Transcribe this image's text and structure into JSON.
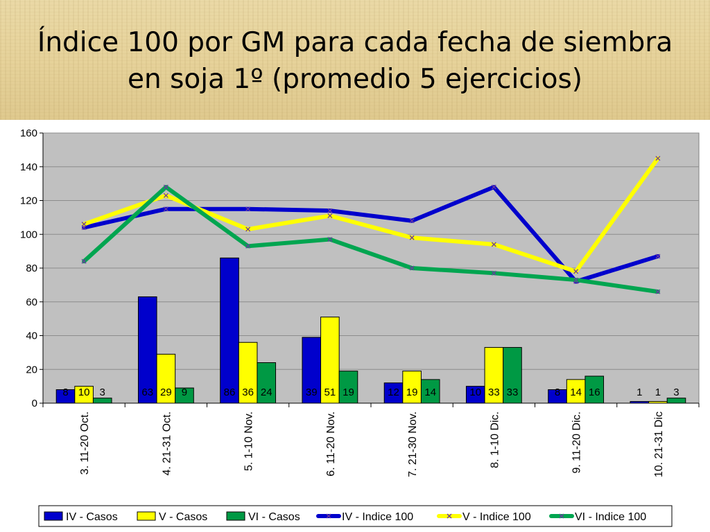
{
  "slide": {
    "title": "Índice 100 por GM para cada fecha de siembra  en soja 1º (promedio 5 ejercicios)"
  },
  "chart_data": {
    "type": "bar",
    "title": "Índice 100 por GM para cada fecha de siembra  en soja 1º (promedio 5 ejercicios)",
    "xlabel": "",
    "ylabel": "",
    "ylim": [
      0,
      160
    ],
    "yticks": [
      0,
      20,
      40,
      60,
      80,
      100,
      120,
      140,
      160
    ],
    "grid": true,
    "legend_position": "bottom",
    "categories": [
      "3. 11-20 Oct.",
      "4. 21-31 Oct.",
      "5. 1-10 Nov.",
      "6. 11-20 Nov.",
      "7. 21-30 Nov.",
      "8. 1-10 Dic.",
      "9. 11-20 Dic.",
      "10. 21-31 Dic"
    ],
    "series": [
      {
        "name": "IV - Casos",
        "type": "bar",
        "color": "#0000cc",
        "values": [
          8,
          63,
          86,
          39,
          12,
          10,
          8,
          1
        ]
      },
      {
        "name": "V - Casos",
        "type": "bar",
        "color": "#ffff00",
        "values": [
          10,
          29,
          36,
          51,
          19,
          33,
          14,
          1
        ]
      },
      {
        "name": "VI - Casos",
        "type": "bar",
        "color": "#009944",
        "values": [
          3,
          9,
          24,
          19,
          14,
          33,
          16,
          3
        ]
      },
      {
        "name": "IV -  Indice 100",
        "type": "line",
        "color": "#0000cc",
        "values": [
          104,
          115,
          115,
          114,
          108,
          128,
          72,
          87
        ]
      },
      {
        "name": "V -  Indice 100",
        "type": "line",
        "color": "#ffff00",
        "values": [
          106,
          123,
          103,
          111,
          98,
          94,
          78,
          145
        ]
      },
      {
        "name": "VI -  Indice 100",
        "type": "line",
        "color": "#00a550",
        "values": [
          84,
          128,
          93,
          97,
          80,
          77,
          73,
          66
        ]
      }
    ],
    "data_labels": [
      [
        "8",
        "10",
        "3"
      ],
      [
        "63",
        "29",
        "9"
      ],
      [
        "86",
        "36",
        "24"
      ],
      [
        "39",
        "51",
        "19"
      ],
      [
        "12",
        "19",
        "14"
      ],
      [
        "10",
        "33",
        "33"
      ],
      [
        "8",
        "14",
        "16"
      ],
      [
        "1",
        "1",
        "3"
      ]
    ],
    "plot_background": "#c0c0c0"
  }
}
